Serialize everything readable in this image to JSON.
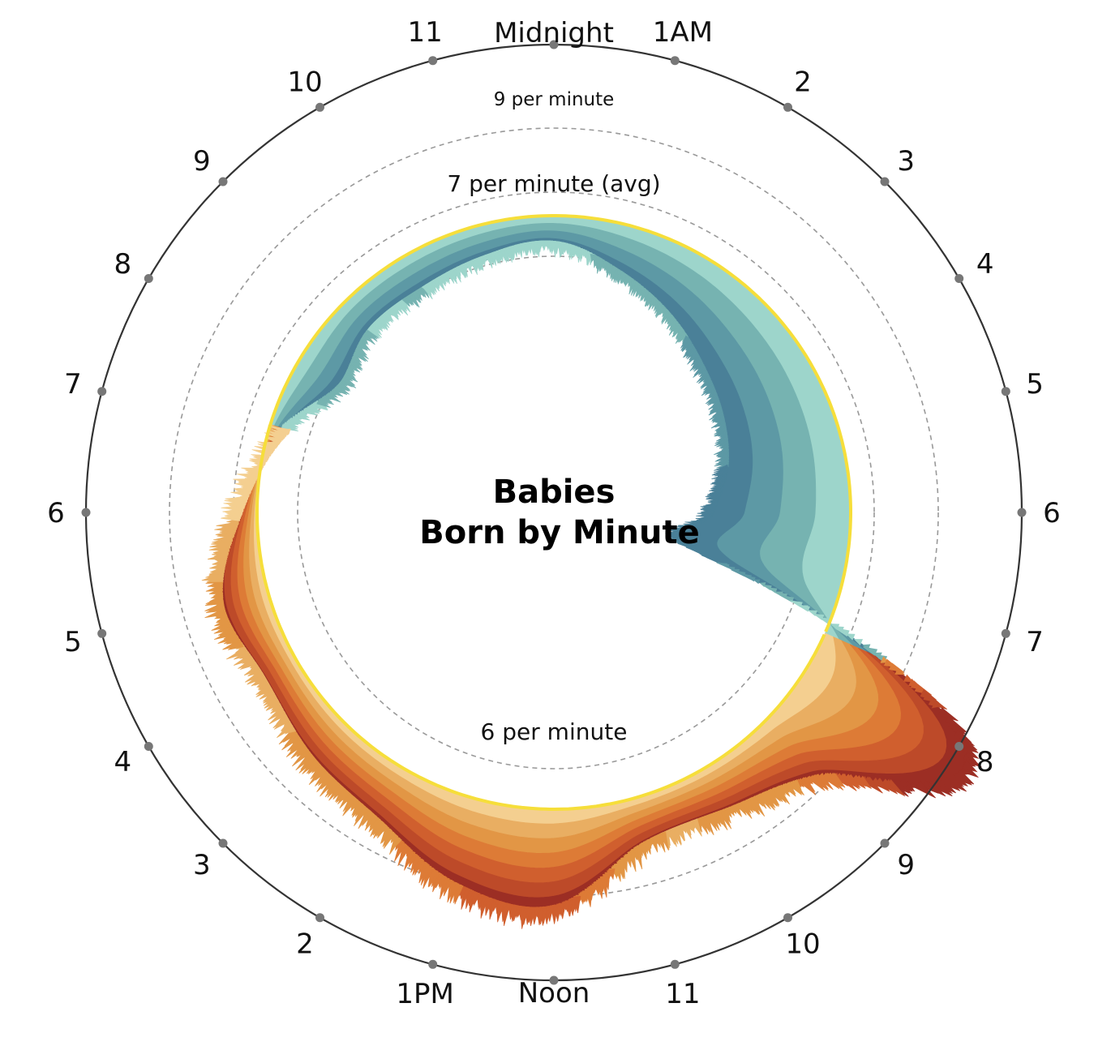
{
  "chart_data": {
    "type": "radial-area",
    "title_lines": [
      "Babies",
      "Born by Minute"
    ],
    "hour_labels": [
      "Midnight",
      "1AM",
      "2",
      "3",
      "4",
      "5",
      "6",
      "7",
      "8",
      "9",
      "10",
      "11",
      "Noon",
      "1PM",
      "2",
      "3",
      "4",
      "5",
      "6",
      "7",
      "8",
      "9",
      "10",
      "11"
    ],
    "reference_rings": [
      {
        "value": 9,
        "label": "9 per minute"
      },
      {
        "value": 7,
        "label": "7 per minute (avg)"
      },
      {
        "value": 6,
        "label": "6 per minute"
      }
    ],
    "average": 7,
    "unit": "babies born per minute",
    "night_color": "#3f7f9f",
    "day_color": "#e3913c",
    "peak_color": "#9c2e24",
    "avg_line_color": "#f6de3a",
    "hourly_profile": [
      {
        "hour": 0,
        "value": 6.7
      },
      {
        "hour": 1,
        "value": 6.5
      },
      {
        "hour": 2,
        "value": 6.3
      },
      {
        "hour": 3,
        "value": 6.1
      },
      {
        "hour": 4,
        "value": 5.95
      },
      {
        "hour": 5,
        "value": 5.8
      },
      {
        "hour": 6,
        "value": 5.6
      },
      {
        "hour": 7,
        "value": 5.5
      },
      {
        "hour": 8,
        "value": 8.8
      },
      {
        "hour": 9,
        "value": 7.8
      },
      {
        "hour": 10,
        "value": 7.5
      },
      {
        "hour": 11,
        "value": 7.5
      },
      {
        "hour": 12,
        "value": 8.0
      },
      {
        "hour": 13,
        "value": 7.9
      },
      {
        "hour": 14,
        "value": 7.6
      },
      {
        "hour": 15,
        "value": 7.5
      },
      {
        "hour": 16,
        "value": 7.4
      },
      {
        "hour": 17,
        "value": 7.5
      },
      {
        "hour": 18,
        "value": 7.2
      },
      {
        "hour": 19,
        "value": 6.9
      },
      {
        "hour": 20,
        "value": 6.5
      },
      {
        "hour": 21,
        "value": 6.6
      },
      {
        "hour": 22,
        "value": 6.6
      },
      {
        "hour": 23,
        "value": 6.65
      }
    ]
  }
}
